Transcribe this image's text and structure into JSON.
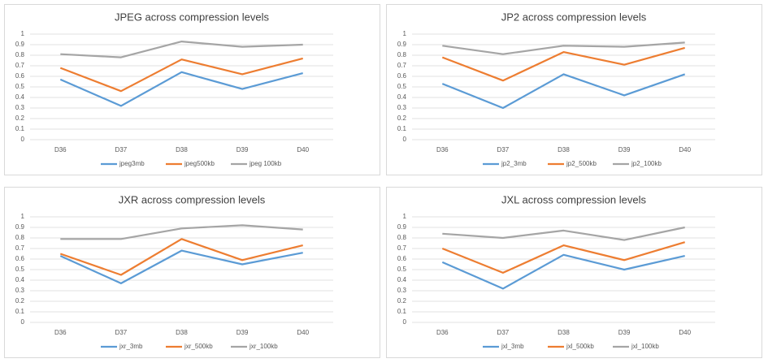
{
  "chart_data": [
    {
      "type": "line",
      "title": "JPEG across compression levels",
      "categories": [
        "D36",
        "D37",
        "D38",
        "D39",
        "D40"
      ],
      "series": [
        {
          "name": "jpeg3mb",
          "color": "#5b9bd5",
          "values": [
            0.57,
            0.32,
            0.64,
            0.48,
            0.63
          ]
        },
        {
          "name": "jpeg500kb",
          "color": "#ed7d31",
          "values": [
            0.68,
            0.46,
            0.76,
            0.62,
            0.77
          ]
        },
        {
          "name": "jpeg 100kb",
          "color": "#a5a5a5",
          "values": [
            0.81,
            0.78,
            0.93,
            0.88,
            0.9
          ]
        }
      ],
      "ylim": [
        0,
        1
      ],
      "yticks": [
        0,
        0.1,
        0.2,
        0.3,
        0.4,
        0.5,
        0.6,
        0.7,
        0.8,
        0.9,
        1
      ],
      "grid": true,
      "legend": "bottom"
    },
    {
      "type": "line",
      "title": "JP2 across compression levels",
      "categories": [
        "D36",
        "D37",
        "D38",
        "D39",
        "D40"
      ],
      "series": [
        {
          "name": "jp2_3mb",
          "color": "#5b9bd5",
          "values": [
            0.53,
            0.3,
            0.62,
            0.42,
            0.62
          ]
        },
        {
          "name": "jp2_500kb",
          "color": "#ed7d31",
          "values": [
            0.78,
            0.56,
            0.83,
            0.71,
            0.87
          ]
        },
        {
          "name": "jp2_100kb",
          "color": "#a5a5a5",
          "values": [
            0.89,
            0.81,
            0.89,
            0.88,
            0.92
          ]
        }
      ],
      "ylim": [
        0,
        1
      ],
      "yticks": [
        0,
        0.1,
        0.2,
        0.3,
        0.4,
        0.5,
        0.6,
        0.7,
        0.8,
        0.9,
        1
      ],
      "grid": true,
      "legend": "bottom"
    },
    {
      "type": "line",
      "title": "JXR across compression levels",
      "categories": [
        "D36",
        "D37",
        "D38",
        "D39",
        "D40"
      ],
      "series": [
        {
          "name": "jxr_3mb",
          "color": "#5b9bd5",
          "values": [
            0.63,
            0.37,
            0.68,
            0.55,
            0.66
          ]
        },
        {
          "name": "jxr_500kb",
          "color": "#ed7d31",
          "values": [
            0.65,
            0.45,
            0.79,
            0.59,
            0.73
          ]
        },
        {
          "name": "jxr_100kb",
          "color": "#a5a5a5",
          "values": [
            0.79,
            0.79,
            0.89,
            0.92,
            0.88
          ]
        }
      ],
      "ylim": [
        0,
        1
      ],
      "yticks": [
        0,
        0.1,
        0.2,
        0.3,
        0.4,
        0.5,
        0.6,
        0.7,
        0.8,
        0.9,
        1
      ],
      "grid": true,
      "legend": "bottom"
    },
    {
      "type": "line",
      "title": "JXL across compression levels",
      "categories": [
        "D36",
        "D37",
        "D38",
        "D39",
        "D40"
      ],
      "series": [
        {
          "name": "jxl_3mb",
          "color": "#5b9bd5",
          "values": [
            0.57,
            0.32,
            0.64,
            0.5,
            0.63
          ]
        },
        {
          "name": "jxl_500kb",
          "color": "#ed7d31",
          "values": [
            0.7,
            0.47,
            0.73,
            0.59,
            0.76
          ]
        },
        {
          "name": "jxl_100kb",
          "color": "#a5a5a5",
          "values": [
            0.84,
            0.8,
            0.87,
            0.78,
            0.9
          ]
        }
      ],
      "ylim": [
        0,
        1
      ],
      "yticks": [
        0,
        0.1,
        0.2,
        0.3,
        0.4,
        0.5,
        0.6,
        0.7,
        0.8,
        0.9,
        1
      ],
      "grid": true,
      "legend": "bottom"
    }
  ]
}
